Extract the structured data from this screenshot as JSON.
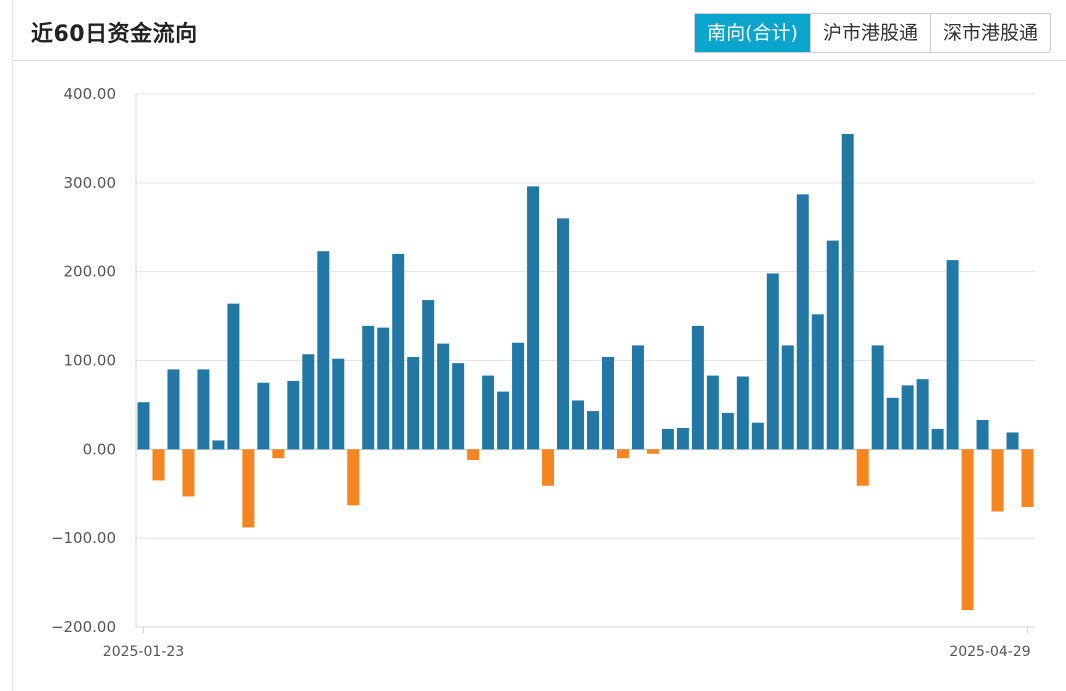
{
  "header": {
    "title": "近60日资金流向",
    "tabs": [
      {
        "label": "南向(合计)",
        "active": true
      },
      {
        "label": "沪市港股通",
        "active": false
      },
      {
        "label": "深市港股通",
        "active": false
      }
    ]
  },
  "colors": {
    "positive": "#2377a4",
    "negative": "#f5851f",
    "active_tab": "#0aa5cc"
  },
  "chart_data": {
    "type": "bar",
    "ylim": [
      -200,
      400
    ],
    "yticks": [
      400,
      300,
      200,
      100,
      0,
      -100,
      -200
    ],
    "ytick_labels": [
      "400.00",
      "300.00",
      "200.00",
      "100.00",
      "0.00",
      "−100.00",
      "−200.00"
    ],
    "x_start_label": "2025-01-23",
    "x_end_label": "2025-04-29",
    "grid": true,
    "values": [
      53,
      -35,
      90,
      -53,
      90,
      10,
      164,
      -88,
      75,
      -10,
      77,
      107,
      223,
      102,
      -63,
      139,
      137,
      220,
      104,
      168,
      119,
      97,
      -12,
      83,
      65,
      120,
      296,
      -41,
      260,
      55,
      43,
      104,
      -10,
      117,
      -5,
      23,
      24,
      139,
      83,
      41,
      82,
      30,
      198,
      117,
      287,
      152,
      235,
      355,
      -41,
      117,
      58,
      72,
      79,
      23,
      213,
      -181,
      33,
      -70,
      19,
      -65
    ]
  }
}
